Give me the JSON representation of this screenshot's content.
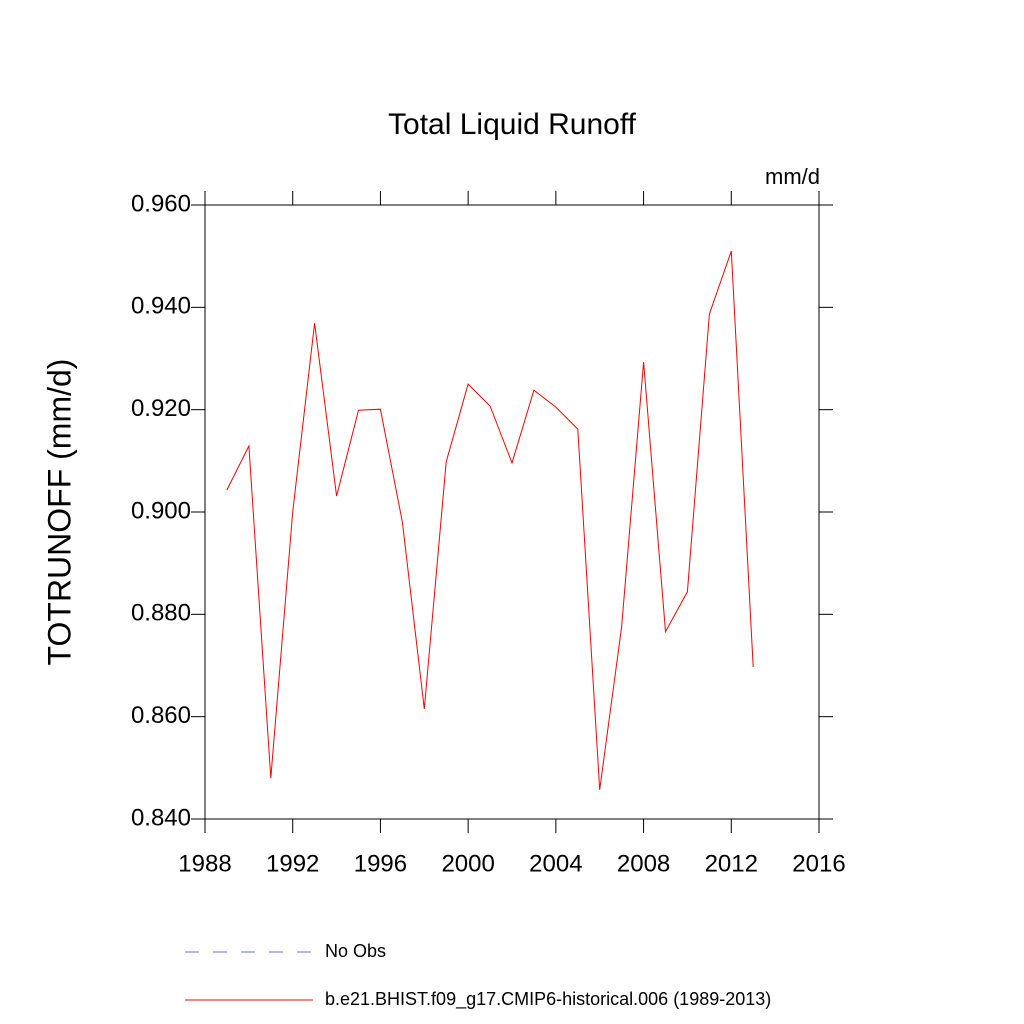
{
  "chart_data": {
    "type": "line",
    "title": "Total Liquid Runoff",
    "units": "mm/d",
    "y_label": "TOTRUNOFF  (mm/d)",
    "x": [
      1989,
      1990,
      1991,
      1992,
      1993,
      1994,
      1995,
      1996,
      1997,
      1998,
      1999,
      2000,
      2001,
      2002,
      2003,
      2004,
      2005,
      2006,
      2007,
      2008,
      2009,
      2010,
      2011,
      2012,
      2013
    ],
    "series": [
      {
        "name": "No Obs",
        "color": "#7070c8",
        "dashed": true,
        "values": [
          null,
          null,
          null,
          null,
          null,
          null,
          null,
          null,
          null,
          null,
          null,
          null,
          null,
          null,
          null,
          null,
          null,
          null,
          null,
          null,
          null,
          null,
          null,
          null,
          null
        ]
      },
      {
        "name": "b.e21.BHIST.f09_g17.CMIP6-historical.006 (1989-2013)",
        "color": "#ff0000",
        "dashed": false,
        "values": [
          0.9043,
          0.9129,
          0.848,
          0.9,
          0.9369,
          0.9031,
          0.9199,
          0.9201,
          0.898,
          0.8615,
          0.9098,
          0.925,
          0.9207,
          0.9096,
          0.9238,
          0.9205,
          0.9162,
          0.8457,
          0.8775,
          0.9293,
          0.8766,
          0.8844,
          0.9387,
          0.951,
          0.8697
        ]
      }
    ],
    "xlim": [
      1988,
      2016
    ],
    "xticks": [
      1988,
      1992,
      1996,
      2000,
      2004,
      2008,
      2012,
      2016
    ],
    "ylim": [
      0.84,
      0.96
    ],
    "yticks": [
      {
        "value": 0.84,
        "label": "0.840"
      },
      {
        "value": 0.86,
        "label": "0.860"
      },
      {
        "value": 0.88,
        "label": "0.880"
      },
      {
        "value": 0.9,
        "label": "0.900"
      },
      {
        "value": 0.92,
        "label": "0.920"
      },
      {
        "value": 0.94,
        "label": "0.940"
      },
      {
        "value": 0.96,
        "label": "0.960"
      }
    ],
    "grid": false
  }
}
